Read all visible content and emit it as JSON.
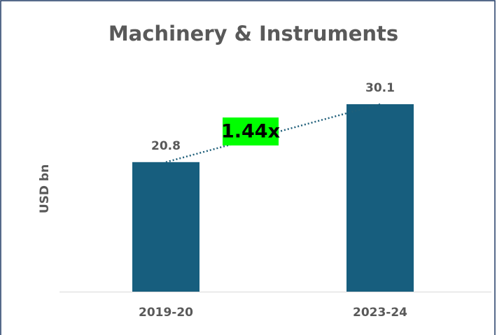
{
  "chart_data": {
    "type": "bar",
    "title": "Machinery & Instruments",
    "y_label": "USD bn",
    "categories": [
      "2019-20",
      "2023-24"
    ],
    "values": [
      20.8,
      30.1
    ],
    "color": "#175e7e",
    "annotation": {
      "text": "1.44x",
      "color": "#00ff00"
    }
  }
}
